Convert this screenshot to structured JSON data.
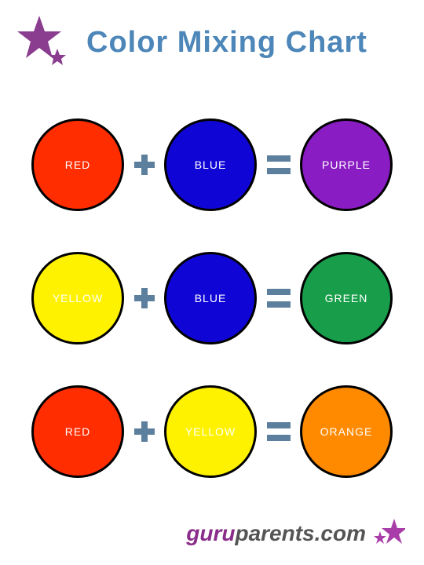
{
  "title": "Color Mixing Chart",
  "title_color": "#4d86b8",
  "title_fontsize": 38,
  "background_color": "#ffffff",
  "star_color": "#8a3d8f",
  "operator_color": "#5c7f9e",
  "circle_border_color": "#000000",
  "circle_border_width": 3,
  "circle_size": 118,
  "label_color": "#ffffff",
  "label_fontsize": 14,
  "rows": [
    {
      "a": {
        "label": "RED",
        "color": "#ff2d00"
      },
      "b": {
        "label": "BLUE",
        "color": "#0f06d6"
      },
      "result": {
        "label": "PURPLE",
        "color": "#8a1cc4"
      }
    },
    {
      "a": {
        "label": "YELLOW",
        "color": "#fff200"
      },
      "b": {
        "label": "BLUE",
        "color": "#0f06d6"
      },
      "result": {
        "label": "GREEN",
        "color": "#189e4a"
      }
    },
    {
      "a": {
        "label": "RED",
        "color": "#ff2d00"
      },
      "b": {
        "label": "YELLOW",
        "color": "#fff200"
      },
      "result": {
        "label": "ORANGE",
        "color": "#ff8a00"
      }
    }
  ],
  "plus_icon": {
    "width": 26,
    "thickness": 8,
    "color": "#5c7f9e"
  },
  "equals_icon": {
    "width": 30,
    "thickness": 8,
    "gap": 8,
    "color": "#5c7f9e"
  },
  "footer": {
    "guru": "guru",
    "parents": "parents",
    "dotcom": ".com",
    "guru_color": "#8a2d8a",
    "rest_color": "#555555",
    "star_color": "#a83ca8",
    "fontsize": 28
  }
}
